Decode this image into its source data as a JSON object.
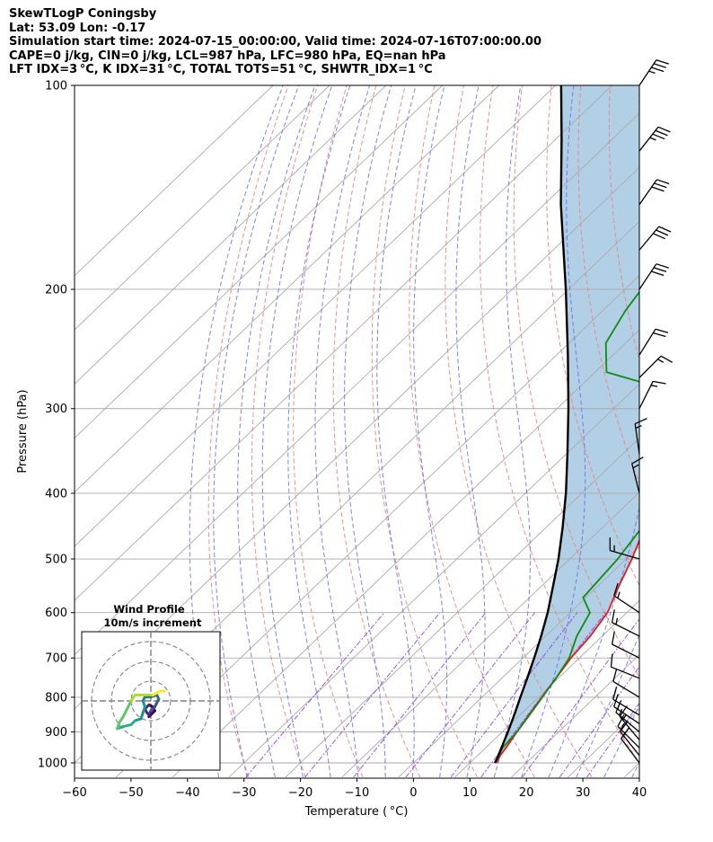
{
  "header": {
    "line1": "SkewTLogP Coningsby",
    "line2": "Lat: 53.09   Lon: -0.17",
    "line3": "Simulation start time: 2024-07-15_00:00:00, Valid time: 2024-07-16T07:00:00.00",
    "line4": "CAPE=0 j/kg, CIN=0 j/kg, LCL=987 hPa, LFC=980 hPa, EQ=nan hPa",
    "line5": "LFT IDX=3 °C, K IDX=31 °C, TOTAL TOTS=51 °C, SHWTR_IDX=1 °C"
  },
  "chart_data": {
    "type": "line",
    "xlabel": "Temperature ( °C)",
    "ylabel": "Pressure (hPa)",
    "xlim": [
      -60,
      40
    ],
    "ylim": [
      1050,
      100
    ],
    "y_scale": "log",
    "skew": true,
    "grid": true,
    "x_ticks": [
      -60,
      -50,
      -40,
      -30,
      -20,
      -10,
      0,
      10,
      20,
      30,
      40
    ],
    "y_ticks": [
      1000,
      900,
      800,
      700,
      600,
      500,
      400,
      300,
      200,
      100
    ],
    "colors": {
      "temperature": "#e41a1c",
      "dewpoint": "#138a13",
      "parcel": "#000000",
      "shade": "#a3c7e0",
      "dry_adiabat": "#f08080",
      "moist_adiabat": "#6a6aee",
      "mixing_ratio": "#8a2be2",
      "isotherm": "#aaaaaa"
    },
    "series": [
      {
        "points": [
          [
            1000,
            14.7
          ],
          [
            975,
            14.0
          ],
          [
            950,
            13.6
          ],
          [
            900,
            12.6
          ],
          [
            850,
            11.6
          ],
          [
            800,
            10.6
          ],
          [
            750,
            9.6
          ],
          [
            700,
            8.5
          ],
          [
            650,
            7.9
          ],
          [
            600,
            6.6
          ],
          [
            550,
            3.8
          ],
          [
            500,
            1.0
          ],
          [
            450,
            -2.5
          ],
          [
            400,
            -6.0
          ],
          [
            350,
            -10.5
          ],
          [
            330,
            -12.5
          ],
          [
            300,
            -16.0
          ],
          [
            290,
            -17.5
          ],
          [
            272,
            -18.0
          ],
          [
            250,
            -21.0
          ],
          [
            230,
            -24.5
          ],
          [
            210,
            -28.5
          ],
          [
            195,
            -32.0
          ],
          [
            180,
            -36.0
          ],
          [
            165,
            -39.5
          ],
          [
            150,
            -43.5
          ],
          [
            140,
            -46.5
          ],
          [
            130,
            -49.5
          ],
          [
            115,
            -54.0
          ],
          [
            100,
            -58.5
          ]
        ]
      },
      {
        "points": [
          [
            1000,
            14.5
          ],
          [
            950,
            13.0
          ],
          [
            900,
            12.6
          ],
          [
            850,
            11.7
          ],
          [
            800,
            10.7
          ],
          [
            750,
            9.6
          ],
          [
            700,
            8.2
          ],
          [
            650,
            5.5
          ],
          [
            600,
            3.5
          ],
          [
            570,
            -0.5
          ],
          [
            500,
            -1.5
          ],
          [
            450,
            -3.0
          ],
          [
            400,
            -6.5
          ],
          [
            350,
            -11.5
          ],
          [
            320,
            -14.5
          ],
          [
            290,
            -16.5
          ],
          [
            280,
            -25.0
          ],
          [
            265,
            -38.0
          ],
          [
            240,
            -43.5
          ],
          [
            215,
            -46.0
          ],
          [
            195,
            -47.5
          ],
          [
            170,
            -50.5
          ],
          [
            150,
            -54.0
          ],
          [
            125,
            -58.5
          ],
          [
            100,
            -64.0
          ]
        ]
      },
      {
        "points": [
          [
            1000,
            14.4
          ],
          [
            985,
            14.0
          ],
          [
            950,
            12.8
          ],
          [
            900,
            11.0
          ],
          [
            850,
            9.0
          ],
          [
            800,
            6.8
          ],
          [
            750,
            4.5
          ],
          [
            700,
            2.0
          ],
          [
            650,
            -0.8
          ],
          [
            600,
            -4.0
          ],
          [
            550,
            -7.8
          ],
          [
            500,
            -12.0
          ],
          [
            450,
            -17.0
          ],
          [
            400,
            -22.8
          ],
          [
            350,
            -29.8
          ],
          [
            300,
            -38.0
          ],
          [
            250,
            -48.0
          ],
          [
            200,
            -60.5
          ],
          [
            150,
            -77.0
          ],
          [
            120,
            -89.0
          ],
          [
            100,
            -99.0
          ]
        ]
      }
    ],
    "wind_barbs": [
      {
        "p": 1000,
        "u": -3,
        "v": 4
      },
      {
        "p": 975,
        "u": -4,
        "v": 5
      },
      {
        "p": 950,
        "u": -5,
        "v": 5
      },
      {
        "p": 925,
        "u": -5,
        "v": 6
      },
      {
        "p": 900,
        "u": -6,
        "v": 5
      },
      {
        "p": 875,
        "u": -6,
        "v": 4
      },
      {
        "p": 850,
        "u": -5,
        "v": 3
      },
      {
        "p": 800,
        "u": -5,
        "v": 3
      },
      {
        "p": 750,
        "u": -5,
        "v": 2
      },
      {
        "p": 700,
        "u": -4,
        "v": 2
      },
      {
        "p": 650,
        "u": -6,
        "v": 3
      },
      {
        "p": 600,
        "u": -6,
        "v": 4
      },
      {
        "p": 500,
        "u": -7,
        "v": 2
      },
      {
        "p": 400,
        "u": -2,
        "v": 8
      },
      {
        "p": 350,
        "u": -1,
        "v": 7
      },
      {
        "p": 300,
        "u": 4,
        "v": 8
      },
      {
        "p": 270,
        "u": 6,
        "v": 6
      },
      {
        "p": 250,
        "u": 5,
        "v": 8
      },
      {
        "p": 200,
        "u": 8,
        "v": 12
      },
      {
        "p": 175,
        "u": 10,
        "v": 12
      },
      {
        "p": 150,
        "u": 9,
        "v": 13
      },
      {
        "p": 125,
        "u": 11,
        "v": 14
      },
      {
        "p": 100,
        "u": 10,
        "v": 15
      }
    ],
    "hodograph": {
      "title_line1": "Wind Profile",
      "title_line2": "10m/s increment",
      "ring_step": 10,
      "rings": 3,
      "path": [
        [
          -1,
          -8
        ],
        [
          1,
          -6
        ],
        [
          2,
          -5
        ],
        [
          1,
          -3
        ],
        [
          -1,
          -2
        ],
        [
          -3,
          -4
        ],
        [
          -2,
          -6
        ],
        [
          -1,
          -7
        ],
        [
          0,
          -5
        ],
        [
          2,
          -3
        ],
        [
          3,
          -1
        ],
        [
          4,
          1
        ],
        [
          3,
          3
        ],
        [
          0,
          2
        ],
        [
          -3,
          2
        ],
        [
          -4,
          0
        ],
        [
          -3,
          -3
        ],
        [
          -4,
          -6
        ],
        [
          -5,
          -9
        ],
        [
          -8,
          -10
        ],
        [
          -10,
          -12
        ],
        [
          -14,
          -13
        ],
        [
          -17,
          -14
        ],
        [
          -16,
          -11
        ],
        [
          -14,
          -8
        ],
        [
          -12,
          -4
        ],
        [
          -10,
          0
        ],
        [
          -8,
          3
        ],
        [
          -6,
          3
        ],
        [
          -3,
          3
        ],
        [
          1,
          3
        ],
        [
          3,
          4
        ],
        [
          5,
          5
        ],
        [
          7,
          5
        ]
      ]
    }
  }
}
